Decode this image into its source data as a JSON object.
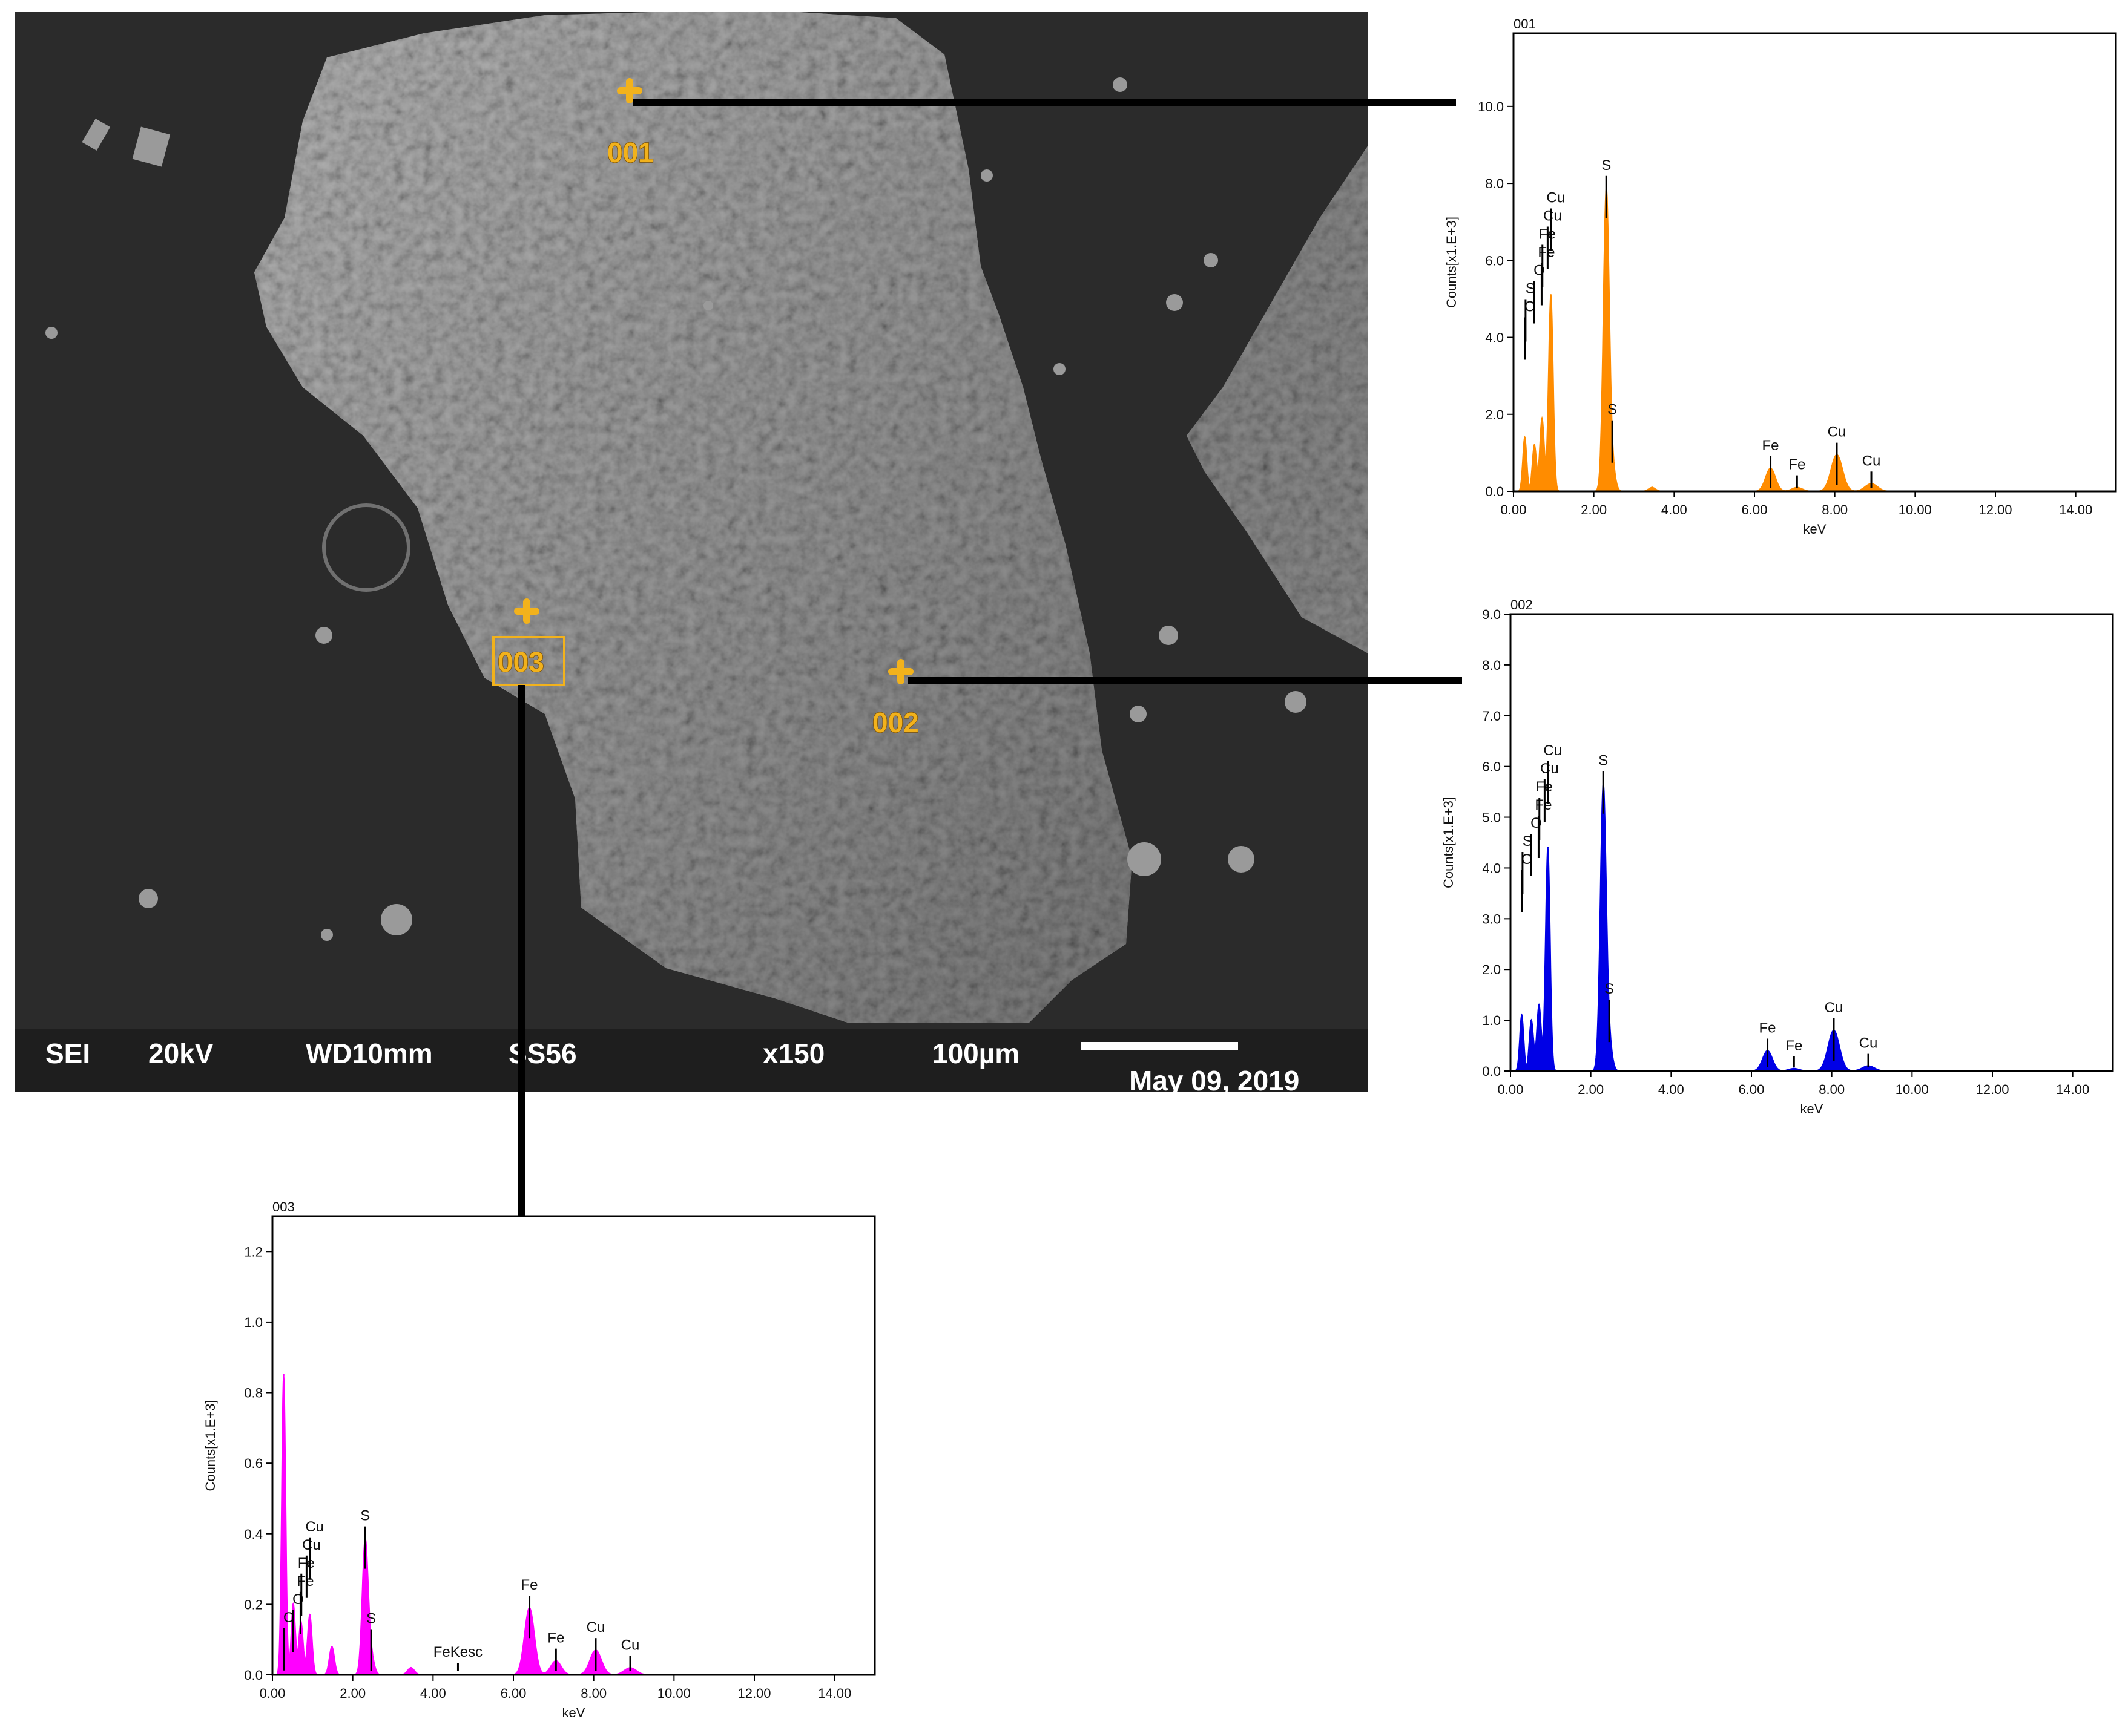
{
  "sem": {
    "mode": "SEI",
    "voltage": "20kV",
    "working_distance": "WD10mm",
    "code": "SS56",
    "magnification": "x150",
    "scale": "100µm",
    "date": "May 09, 2019",
    "markers": [
      "001",
      "002",
      "003"
    ],
    "colors": {
      "marker": "#f2b21c",
      "background": "#2a2a2a",
      "particle": "#8c8c8c"
    }
  },
  "chart_data": [
    {
      "id": "001",
      "type": "area",
      "color": "#ff8c00",
      "xlabel": "keV",
      "ylabel": "Counts[x1.E+3]",
      "xlim": [
        0,
        15
      ],
      "ylim": [
        0,
        11.9
      ],
      "xticks": [
        "0.00",
        "2.00",
        "4.00",
        "6.00",
        "8.00",
        "10.00",
        "12.00",
        "14.00"
      ],
      "yticks": [
        "0.0",
        "2.0",
        "4.0",
        "6.0",
        "8.0",
        "10.0"
      ],
      "grid": false,
      "peaks": [
        {
          "x": 0.28,
          "y": 1.4
        },
        {
          "x": 0.52,
          "y": 1.2
        },
        {
          "x": 0.71,
          "y": 1.9
        },
        {
          "x": 0.93,
          "y": 5.1
        },
        {
          "x": 2.31,
          "y": 7.8
        },
        {
          "x": 2.46,
          "y": 0.6
        },
        {
          "x": 3.45,
          "y": 0.1
        },
        {
          "x": 6.4,
          "y": 0.6
        },
        {
          "x": 7.06,
          "y": 0.1
        },
        {
          "x": 8.05,
          "y": 0.95
        },
        {
          "x": 8.91,
          "y": 0.2
        }
      ],
      "annotations": [
        {
          "label": "C",
          "x": 0.28
        },
        {
          "label": "S",
          "x": 0.3
        },
        {
          "label": "O",
          "x": 0.52
        },
        {
          "label": "Fe",
          "x": 0.7
        },
        {
          "label": "Fe",
          "x": 0.72
        },
        {
          "label": "Cu",
          "x": 0.85
        },
        {
          "label": "Cu",
          "x": 0.93
        },
        {
          "label": "S",
          "x": 2.31
        },
        {
          "label": "S",
          "x": 2.46
        },
        {
          "label": "Fe",
          "x": 6.4
        },
        {
          "label": "Fe",
          "x": 7.06
        },
        {
          "label": "Cu",
          "x": 8.05
        },
        {
          "label": "Cu",
          "x": 8.91
        }
      ]
    },
    {
      "id": "002",
      "type": "area",
      "color": "#0000e6",
      "xlabel": "keV",
      "ylabel": "Counts[x1.E+3]",
      "xlim": [
        0,
        15
      ],
      "ylim": [
        0,
        9.0
      ],
      "xticks": [
        "0.00",
        "2.00",
        "4.00",
        "6.00",
        "8.00",
        "10.00",
        "12.00",
        "14.00"
      ],
      "yticks": [
        "0.0",
        "1.0",
        "2.0",
        "3.0",
        "4.0",
        "5.0",
        "6.0",
        "7.0",
        "8.0",
        "9.0"
      ],
      "grid": false,
      "peaks": [
        {
          "x": 0.28,
          "y": 1.1
        },
        {
          "x": 0.52,
          "y": 1.0
        },
        {
          "x": 0.71,
          "y": 1.3
        },
        {
          "x": 0.93,
          "y": 4.4
        },
        {
          "x": 2.31,
          "y": 5.6
        },
        {
          "x": 2.46,
          "y": 0.5
        },
        {
          "x": 6.4,
          "y": 0.4
        },
        {
          "x": 7.06,
          "y": 0.05
        },
        {
          "x": 8.05,
          "y": 0.8
        },
        {
          "x": 8.91,
          "y": 0.1
        }
      ],
      "annotations": [
        {
          "label": "C",
          "x": 0.28
        },
        {
          "label": "S",
          "x": 0.3
        },
        {
          "label": "O",
          "x": 0.52
        },
        {
          "label": "Fe",
          "x": 0.7
        },
        {
          "label": "Fe",
          "x": 0.72
        },
        {
          "label": "Cu",
          "x": 0.85
        },
        {
          "label": "Cu",
          "x": 0.93
        },
        {
          "label": "S",
          "x": 2.31
        },
        {
          "label": "S",
          "x": 2.46
        },
        {
          "label": "Fe",
          "x": 6.4
        },
        {
          "label": "Fe",
          "x": 7.06
        },
        {
          "label": "Cu",
          "x": 8.05
        },
        {
          "label": "Cu",
          "x": 8.91
        }
      ]
    },
    {
      "id": "003",
      "type": "area",
      "color": "#ff00ff",
      "xlabel": "keV",
      "ylabel": "Counts[x1.E+3]",
      "xlim": [
        0,
        15
      ],
      "ylim": [
        0,
        1.3
      ],
      "xticks": [
        "0.00",
        "2.00",
        "4.00",
        "6.00",
        "8.00",
        "10.00",
        "12.00",
        "14.00"
      ],
      "yticks": [
        "0.0",
        "0.2",
        "0.4",
        "0.6",
        "0.8",
        "1.0",
        "1.2"
      ],
      "grid": false,
      "peaks": [
        {
          "x": 0.28,
          "y": 0.85
        },
        {
          "x": 0.52,
          "y": 0.2
        },
        {
          "x": 0.71,
          "y": 0.15
        },
        {
          "x": 0.93,
          "y": 0.17
        },
        {
          "x": 1.48,
          "y": 0.08
        },
        {
          "x": 2.31,
          "y": 0.38
        },
        {
          "x": 2.46,
          "y": 0.05
        },
        {
          "x": 3.45,
          "y": 0.02
        },
        {
          "x": 6.4,
          "y": 0.19
        },
        {
          "x": 7.06,
          "y": 0.04
        },
        {
          "x": 8.05,
          "y": 0.07
        },
        {
          "x": 8.91,
          "y": 0.02
        }
      ],
      "annotations": [
        {
          "label": "C",
          "x": 0.28
        },
        {
          "label": "O",
          "x": 0.52
        },
        {
          "label": "Fe",
          "x": 0.7
        },
        {
          "label": "Fe",
          "x": 0.72
        },
        {
          "label": "Cu",
          "x": 0.85
        },
        {
          "label": "Cu",
          "x": 0.93
        },
        {
          "label": "S",
          "x": 2.31
        },
        {
          "label": "S",
          "x": 2.46
        },
        {
          "label": "FeKesc",
          "x": 4.62
        },
        {
          "label": "Fe",
          "x": 6.4
        },
        {
          "label": "Fe",
          "x": 7.06
        },
        {
          "label": "Cu",
          "x": 8.05
        },
        {
          "label": "Cu",
          "x": 8.91
        }
      ]
    }
  ]
}
